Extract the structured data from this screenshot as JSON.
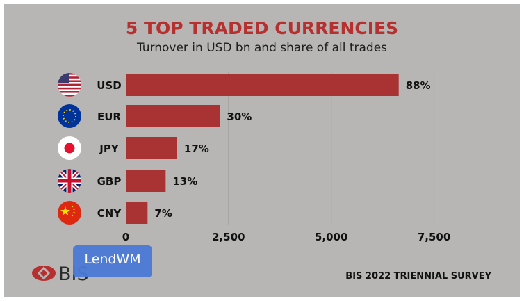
{
  "chart_data": {
    "type": "bar",
    "orientation": "horizontal",
    "title": "5 TOP TRADED CURRENCIES",
    "subtitle": "Turnover in USD bn and share of all trades",
    "categories": [
      "USD",
      "EUR",
      "JPY",
      "GBP",
      "CNY"
    ],
    "values": [
      6640,
      2290,
      1250,
      970,
      530
    ],
    "data_labels": [
      "88%",
      "30%",
      "17%",
      "13%",
      "7%"
    ],
    "xlim": [
      0,
      9300
    ],
    "xticks": [
      0,
      2500,
      5000,
      7500
    ],
    "xtick_labels": [
      "0",
      "2,500",
      "5,000",
      "7,500"
    ],
    "grid": "vertical",
    "bar_color": "#a93232",
    "icons": [
      "us-flag-icon",
      "eu-flag-icon",
      "japan-flag-icon",
      "uk-flag-icon",
      "china-flag-icon"
    ]
  },
  "footer": {
    "source": "BIS 2022 TRIENNIAL SURVEY",
    "logo_text": "BIS"
  },
  "watermark": "LendWM"
}
